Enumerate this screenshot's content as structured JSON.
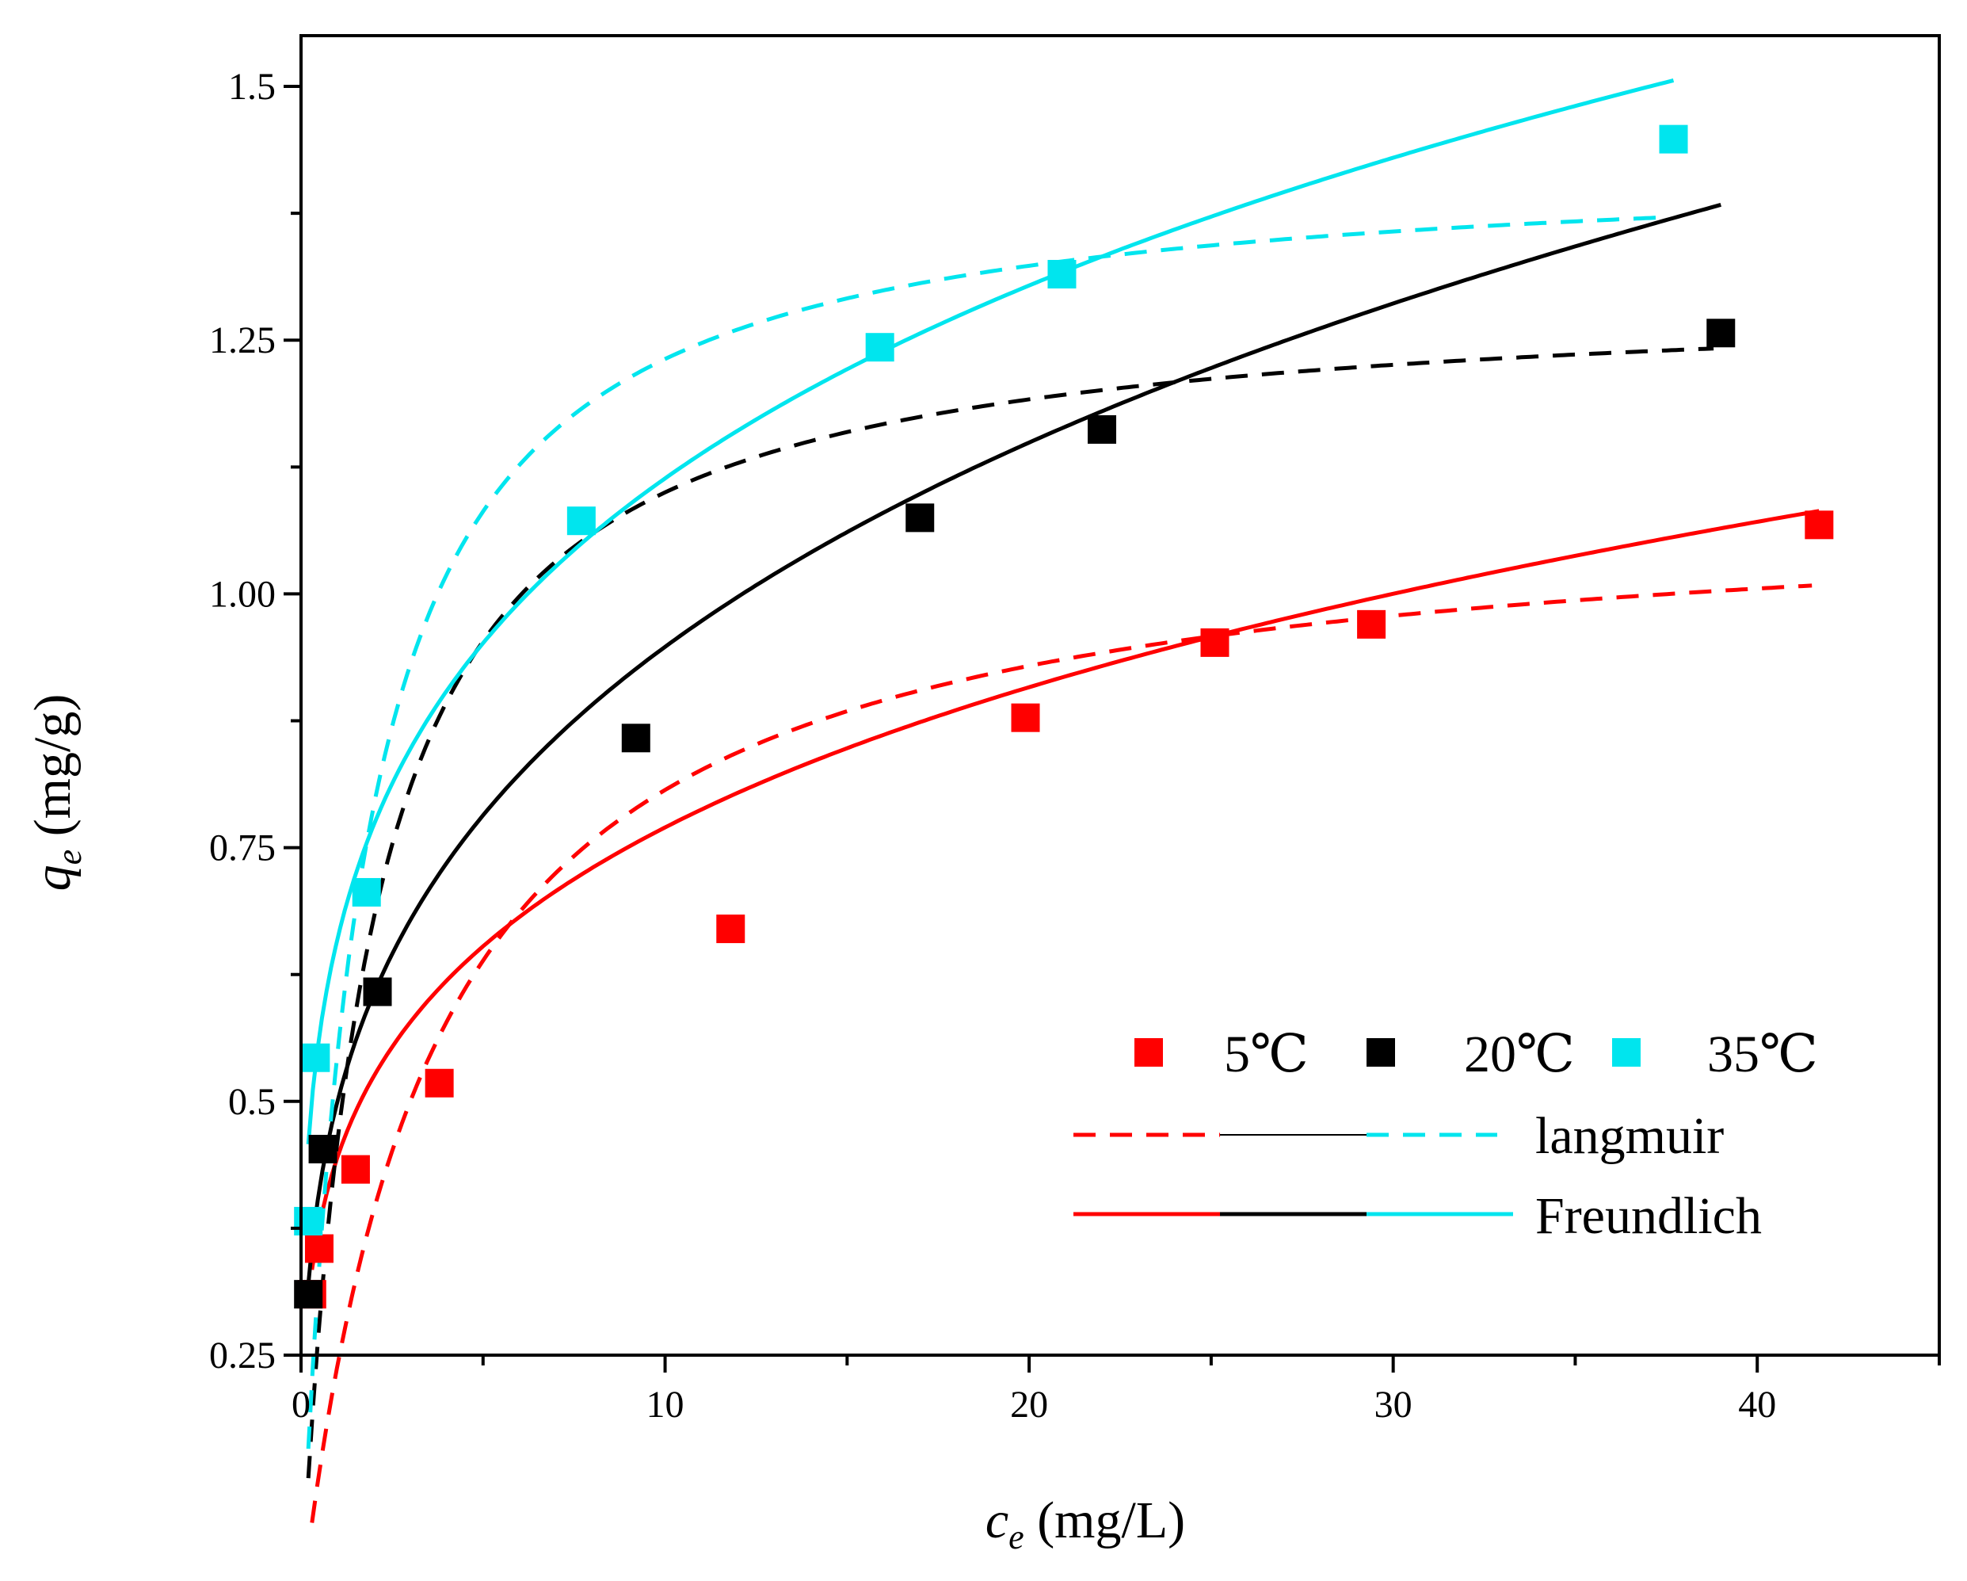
{
  "chart_data": {
    "type": "scatter",
    "title": "",
    "xlabel": {
      "var": "c",
      "sub": "e",
      "unit": " (mg/L)"
    },
    "ylabel": {
      "var": "q",
      "sub": "e",
      "unit": " (mg/g)"
    },
    "xlim": [
      0,
      45
    ],
    "ylim": [
      0.25,
      1.55
    ],
    "x_ticks": [
      0,
      10,
      20,
      30,
      40
    ],
    "x_tick_labels": [
      "0",
      "10",
      "20",
      "30",
      "40"
    ],
    "x_minor_ticks": [
      5,
      15,
      25,
      35,
      45
    ],
    "y_ticks": [
      0.25,
      0.5,
      0.75,
      1.0,
      1.25,
      1.5
    ],
    "y_tick_labels": [
      "0.25",
      "0.5",
      "0.75",
      "1.00",
      "1.25",
      "1.5"
    ],
    "y_minor_ticks": [
      0.375,
      0.625,
      0.875,
      1.125,
      1.375
    ],
    "grid": false,
    "legend": {
      "position": "bottom-right",
      "series_labels": [
        "5℃",
        "20℃",
        "35℃"
      ],
      "langmuir_label": "langmuir",
      "freundlich_label": "Freundlich"
    },
    "series": [
      {
        "name": "5℃",
        "color": "#ff0000",
        "x": [
          0.3,
          0.5,
          1.5,
          3.8,
          11.8,
          19.9,
          25.1,
          29.4,
          41.7
        ],
        "y": [
          0.31,
          0.355,
          0.433,
          0.518,
          0.67,
          0.878,
          0.952,
          0.97,
          1.068
        ],
        "langmuir": {
          "qmax": 1.095,
          "KL": 0.28,
          "x_end": 41.5
        },
        "freundlich": {
          "KF": 0.445,
          "n": 4.2,
          "x_end": 41.7
        }
      },
      {
        "name": "20℃",
        "color": "#000000",
        "x": [
          0.2,
          0.6,
          2.1,
          9.2,
          17.0,
          22.0,
          39.0
        ],
        "y": [
          0.31,
          0.453,
          0.608,
          0.858,
          1.075,
          1.162,
          1.257
        ],
        "langmuir": {
          "qmax": 1.3,
          "KL": 0.55,
          "x_end": 38.8
        },
        "freundlich": {
          "KF": 0.5,
          "n": 3.6,
          "x_end": 39.0
        }
      },
      {
        "name": "35℃",
        "color": "#00e5ee",
        "x": [
          0.2,
          0.4,
          1.8,
          7.7,
          15.9,
          20.9,
          37.7
        ],
        "y": [
          0.382,
          0.543,
          0.706,
          1.072,
          1.243,
          1.315,
          1.448
        ],
        "langmuir": {
          "qmax": 1.43,
          "KL": 0.62,
          "x_end": 37.3
        },
        "freundlich": {
          "KF": 0.66,
          "n": 4.4,
          "x_end": 37.7
        }
      }
    ]
  }
}
